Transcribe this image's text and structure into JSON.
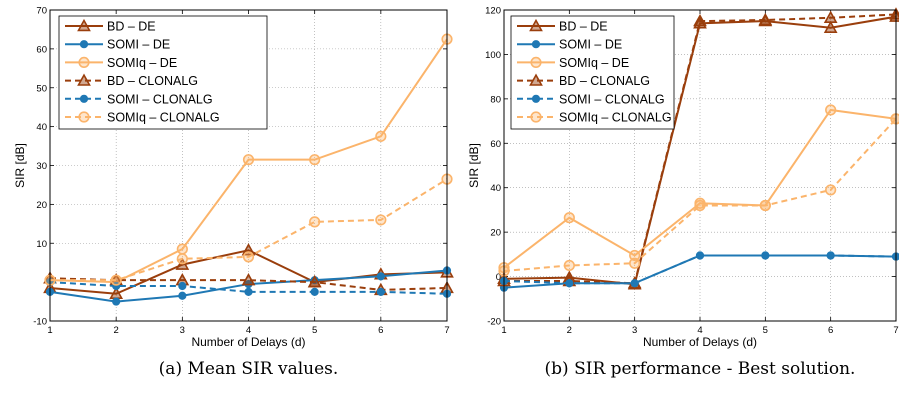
{
  "chart_data": [
    {
      "type": "line",
      "caption": "(a) Mean SIR values.",
      "xlabel": "Number of Delays (d)",
      "ylabel": "SIR [dB]",
      "xlim": [
        1,
        7
      ],
      "ylim": [
        -10,
        70
      ],
      "xticks": [
        1,
        2,
        3,
        4,
        5,
        6,
        7
      ],
      "yticks": [
        -10,
        10,
        20,
        30,
        40,
        50,
        60,
        70
      ],
      "grid": true,
      "legend_position": "top-left",
      "x": [
        1,
        2,
        3,
        4,
        5,
        6,
        7
      ],
      "series": [
        {
          "name": "BD – DE",
          "color": "#9a3e0c",
          "marker": "triangle",
          "dashed": false,
          "values": [
            -1.5,
            -3,
            4.5,
            8.2,
            0,
            2,
            2.5
          ]
        },
        {
          "name": "SOMI – DE",
          "color": "#1f78b4",
          "marker": "circle",
          "dashed": false,
          "values": [
            -2.5,
            -5,
            -3.5,
            -0.5,
            0.5,
            1.5,
            3
          ]
        },
        {
          "name": "SOMIq – DE",
          "color": "#fbb46b",
          "marker": "ring",
          "dashed": false,
          "values": [
            0.5,
            0,
            8.5,
            31.5,
            31.5,
            37.5,
            62.5
          ]
        },
        {
          "name": "BD – CLONALG",
          "color": "#9a3e0c",
          "marker": "triangle",
          "dashed": true,
          "values": [
            1,
            0.5,
            0.5,
            0.5,
            0,
            -2,
            -1.5
          ]
        },
        {
          "name": "SOMI – CLONALG",
          "color": "#1f78b4",
          "marker": "circle",
          "dashed": true,
          "values": [
            0,
            -1,
            -1,
            -2.5,
            -2.5,
            -2.5,
            -3
          ]
        },
        {
          "name": "SOMIq – CLONALG",
          "color": "#fbb46b",
          "marker": "ring",
          "dashed": true,
          "values": [
            0.5,
            0.5,
            6,
            6.5,
            15.5,
            16,
            26.5
          ]
        }
      ]
    },
    {
      "type": "line",
      "caption": "(b) SIR performance - Best solution.",
      "xlabel": "Number of Delays (d)",
      "ylabel": "SIR [dB]",
      "xlim": [
        1,
        7
      ],
      "ylim": [
        -20,
        120
      ],
      "xticks": [
        1,
        2,
        3,
        4,
        5,
        6,
        7
      ],
      "yticks": [
        -20,
        0,
        20,
        40,
        60,
        80,
        100,
        120
      ],
      "grid": true,
      "legend_position": "top-left",
      "x": [
        1,
        2,
        3,
        4,
        5,
        6,
        7
      ],
      "series": [
        {
          "name": "BD – DE",
          "color": "#9a3e0c",
          "marker": "triangle",
          "dashed": false,
          "values": [
            -1,
            -0.5,
            -3.5,
            114,
            115,
            112,
            117
          ]
        },
        {
          "name": "SOMI – DE",
          "color": "#1f78b4",
          "marker": "circle",
          "dashed": false,
          "values": [
            -5,
            -3,
            -3,
            9.5,
            9.5,
            9.5,
            9
          ]
        },
        {
          "name": "SOMIq – DE",
          "color": "#fbb46b",
          "marker": "ring",
          "dashed": false,
          "values": [
            4,
            26.5,
            9.5,
            33,
            32,
            75,
            71
          ]
        },
        {
          "name": "BD – CLONALG",
          "color": "#9a3e0c",
          "marker": "triangle",
          "dashed": true,
          "values": [
            -2,
            -2,
            -3,
            115,
            115.5,
            116.5,
            118
          ]
        },
        {
          "name": "SOMI – CLONALG",
          "color": "#1f78b4",
          "marker": "circle",
          "dashed": true,
          "values": [
            -2,
            -3,
            -3,
            9.5,
            9.5,
            9.5,
            9
          ]
        },
        {
          "name": "SOMIq – CLONALG",
          "color": "#fbb46b",
          "marker": "ring",
          "dashed": true,
          "values": [
            2.5,
            5,
            6,
            32,
            32,
            39,
            71
          ]
        }
      ]
    }
  ]
}
